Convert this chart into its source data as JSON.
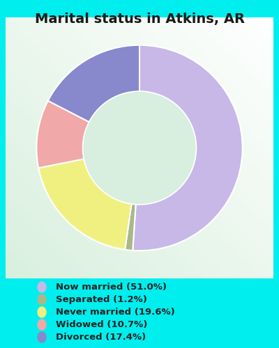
{
  "title": "Marital status in Atkins, AR",
  "title_fontsize": 14,
  "title_color": "#1a1a1a",
  "bg_color": "#00EEEE",
  "chart_bg_top": "#e8f5e8",
  "chart_bg_bottom": "#c8e8d8",
  "categories": [
    "Now married",
    "Separated",
    "Never married",
    "Widowed",
    "Divorced"
  ],
  "values": [
    51.0,
    1.2,
    19.6,
    10.7,
    17.4
  ],
  "colors": [
    "#c8b8e8",
    "#a8b888",
    "#f0f080",
    "#f0a8a8",
    "#8888cc"
  ],
  "legend_labels": [
    "Now married (51.0%)",
    "Separated (1.2%)",
    "Never married (19.6%)",
    "Widowed (10.7%)",
    "Divorced (17.4%)"
  ],
  "legend_colors": [
    "#c8b8e8",
    "#a8b888",
    "#f0f080",
    "#f0a8a8",
    "#8888cc"
  ],
  "donut_width": 0.45,
  "startangle": 90
}
